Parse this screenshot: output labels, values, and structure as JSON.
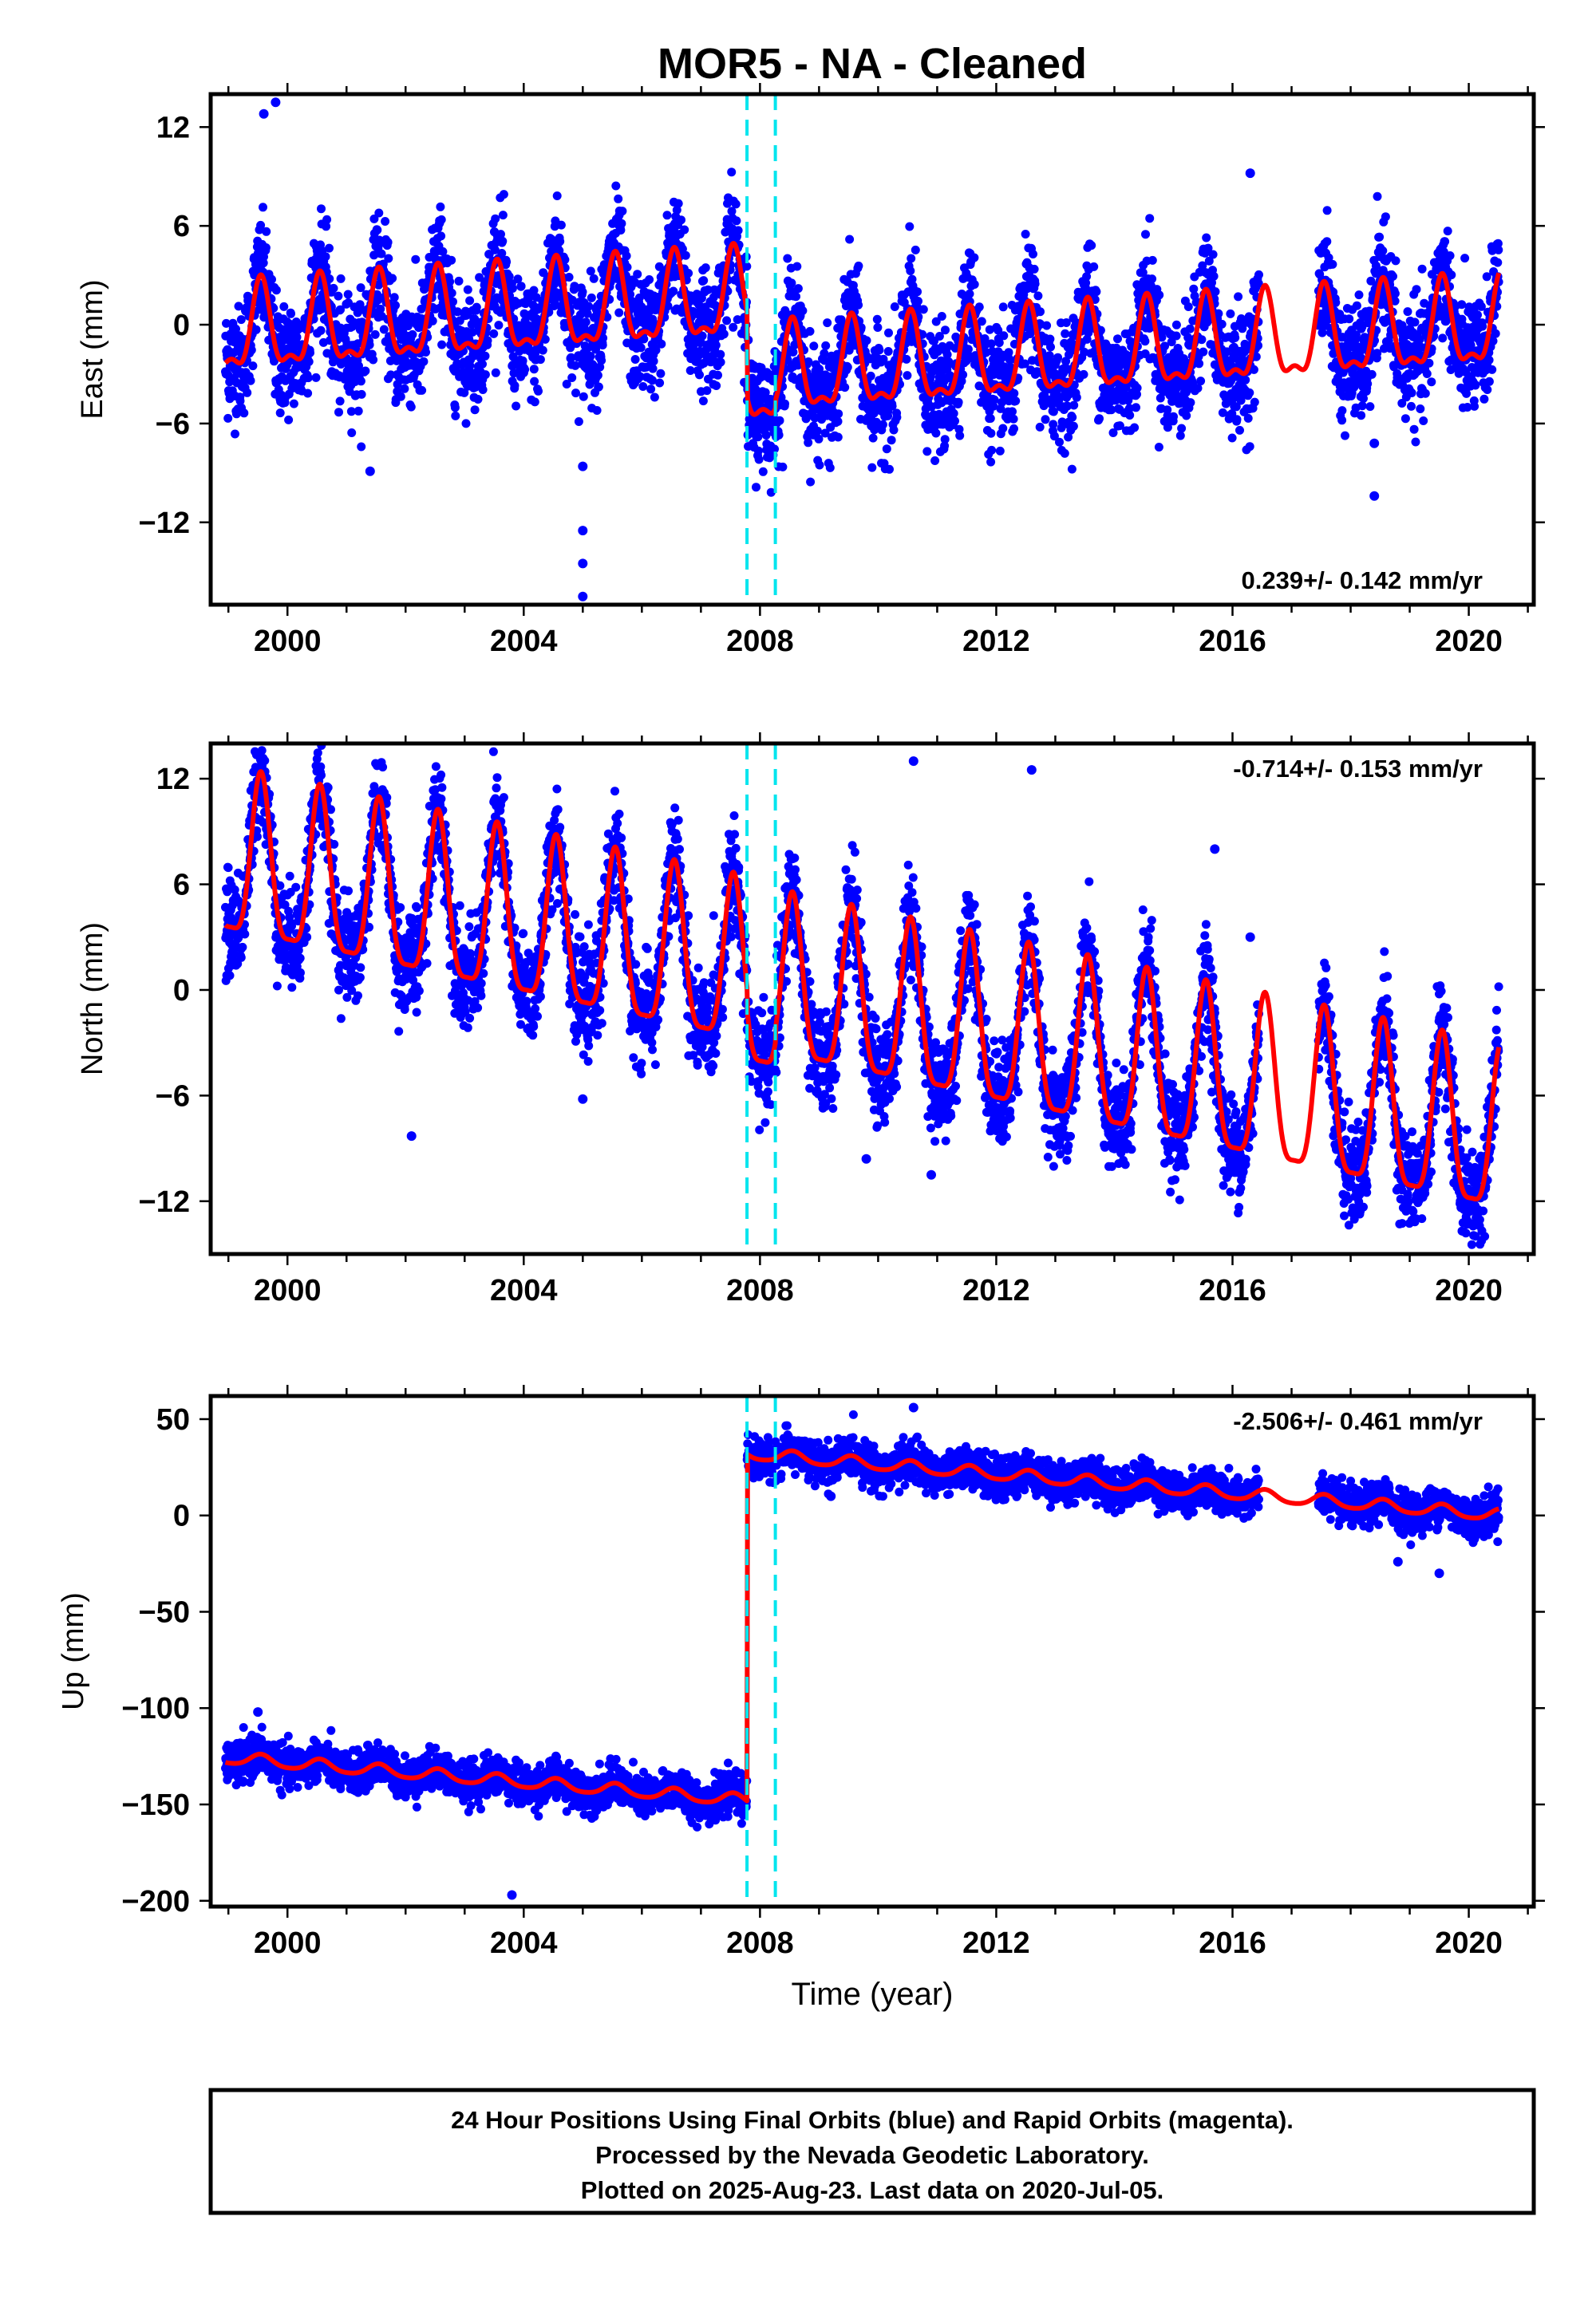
{
  "chart_data": {
    "type": "scatter",
    "title": "MOR5  - NA - Cleaned",
    "xlabel": "Time (year)",
    "xlim": [
      1998.7,
      2021.1
    ],
    "xticks": [
      2000,
      2004,
      2008,
      2012,
      2016,
      2020
    ],
    "x_tick_labels": [
      "2000",
      "2004",
      "2008",
      "2012",
      "2016",
      "2020"
    ],
    "grid": false,
    "data_span": [
      1998.95,
      2020.51
    ],
    "equipment_changes": [
      2007.78,
      2008.26
    ],
    "colors": {
      "observations": "#0000ff",
      "model": "#ff0000",
      "equipment_change": "#00e5ee",
      "frame": "#000000"
    },
    "panels": [
      {
        "name": "east",
        "ylabel": "East (mm)",
        "ylim": [
          -17,
          14
        ],
        "yticks": [
          12,
          6,
          0,
          -6,
          -12
        ],
        "y_tick_labels": [
          "12",
          "6",
          "0",
          "−6",
          "−12"
        ],
        "rate_label": "0.239+/- 0.142 mm/yr",
        "rate_position": "bottom-right",
        "rate_mm_per_yr": 0.239,
        "model": {
          "intercept_at_1999": -0.6,
          "rate": 0.239,
          "annual_amplitude": 2.5,
          "annual_peak": 0.55,
          "semiannual_amplitude": 1.0,
          "offsets": [
            {
              "year": 2007.78,
              "size": -5.2
            },
            {
              "year": 2008.26,
              "size": 0.5
            }
          ]
        },
        "scatter_noise_sd": 1.7,
        "outliers": [
          [
            1999.8,
            13.5
          ],
          [
            1999.6,
            12.8
          ],
          [
            2005.0,
            -12.5
          ],
          [
            2005.0,
            -14.5
          ],
          [
            2005.0,
            -16.5
          ],
          [
            2005.0,
            -8.6
          ],
          [
            2018.4,
            -10.4
          ],
          [
            2018.4,
            -7.2
          ],
          [
            2001.4,
            -8.9
          ],
          [
            2016.3,
            9.2
          ]
        ]
      },
      {
        "name": "north",
        "ylabel": "North (mm)",
        "ylim": [
          -15,
          14
        ],
        "yticks": [
          12,
          6,
          0,
          -6,
          -12
        ],
        "y_tick_labels": [
          "12",
          "6",
          "0",
          "−6",
          "−12"
        ],
        "rate_label": "-0.714+/- 0.153 mm/yr",
        "rate_position": "top-right",
        "rate_mm_per_yr": -0.714,
        "model": {
          "intercept_at_1999": 7.0,
          "rate": -0.714,
          "annual_amplitude": 4.6,
          "annual_peak": 0.55,
          "semiannual_amplitude": 1.2,
          "offsets": [
            {
              "year": 2007.78,
              "size": -1.2
            },
            {
              "year": 2008.26,
              "size": 0.8
            }
          ]
        },
        "scatter_noise_sd": 1.4,
        "outliers": [
          [
            2010.6,
            13.0
          ],
          [
            2012.6,
            12.5
          ],
          [
            2002.1,
            -8.3
          ],
          [
            2005.0,
            -6.2
          ],
          [
            2010.9,
            -10.5
          ],
          [
            2009.8,
            -9.6
          ],
          [
            2015.7,
            8.0
          ],
          [
            2016.3,
            3.0
          ]
        ]
      },
      {
        "name": "up",
        "ylabel": "Up (mm)",
        "ylim": [
          -203,
          62
        ],
        "yticks": [
          50,
          0,
          -50,
          -100,
          -150,
          -200
        ],
        "y_tick_labels": [
          "50",
          "0",
          "−50",
          "−100",
          "−150",
          "−200"
        ],
        "rate_label": "-2.506+/- 0.461 mm/yr",
        "rate_position": "top-right",
        "rate_mm_per_yr": -2.506,
        "model": {
          "intercept_at_1999": -126.0,
          "rate": -2.506,
          "annual_amplitude": 3.0,
          "annual_peak": 0.55,
          "semiannual_amplitude": 0.5,
          "offsets": [
            {
              "year": 2007.78,
              "size": 180.0
            }
          ]
        },
        "scatter_noise_sd": 5.0,
        "outliers": [
          [
            2003.8,
            -197
          ],
          [
            2010.6,
            56
          ],
          [
            2009.2,
            10
          ],
          [
            1999.5,
            -102
          ],
          [
            2019.5,
            -30
          ],
          [
            2018.8,
            -24
          ]
        ]
      }
    ],
    "data_gaps": [
      [
        2016.45,
        2017.45
      ]
    ]
  },
  "footer": {
    "line1": "24 Hour Positions Using Final Orbits (blue) and Rapid Orbits (magenta).",
    "line2": "Processed by the Nevada Geodetic Laboratory.",
    "line3": "Plotted on 2025-Aug-23. Last data on 2020-Jul-05."
  }
}
